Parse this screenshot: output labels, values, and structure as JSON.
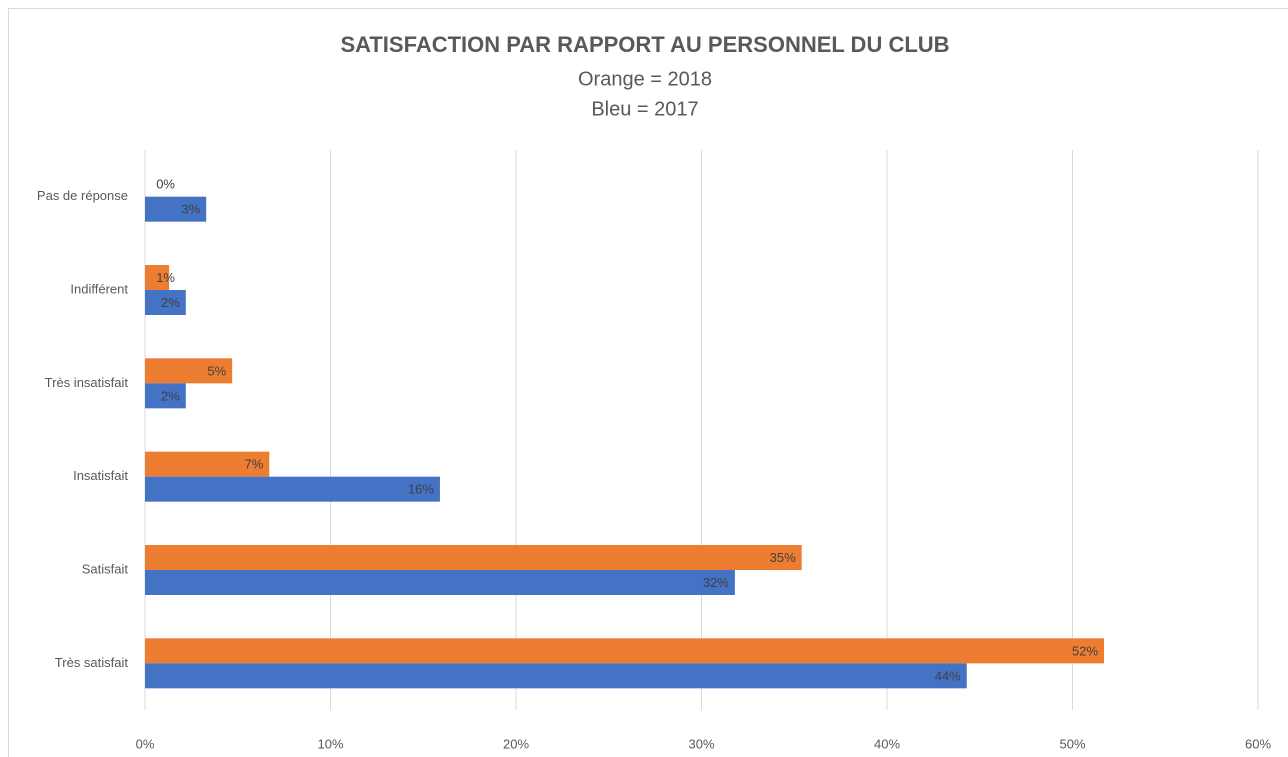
{
  "chart_data": {
    "type": "hbar",
    "title": "SATISFACTION PAR RAPPORT AU PERSONNEL DU CLUB",
    "subtitle": [
      "Orange = 2018",
      "Bleu = 2017"
    ],
    "categories": [
      "Pas de réponse",
      "Indifférent",
      "Très insatisfait",
      "Insatisfait",
      "Satisfait",
      "Très satisfait"
    ],
    "series": [
      {
        "color": "#ed7d31",
        "values": [
          0,
          1.3,
          4.7,
          6.7,
          35.4,
          51.7
        ],
        "value_labels": [
          "0%",
          "1%",
          "5%",
          "7%",
          "35%",
          "52%"
        ]
      },
      {
        "color": "#4472c4",
        "values": [
          3.3,
          2.2,
          2.2,
          15.9,
          31.8,
          44.3
        ],
        "value_labels": [
          "3%",
          "2%",
          "2%",
          "16%",
          "32%",
          "44%"
        ]
      }
    ],
    "xlim": [
      0,
      60
    ],
    "xticks": [
      {
        "value": 0,
        "label": "0%"
      },
      {
        "value": 10,
        "label": "10%"
      },
      {
        "value": 20,
        "label": "20%"
      },
      {
        "value": 30,
        "label": "30%"
      },
      {
        "value": 40,
        "label": "40%"
      },
      {
        "value": 50,
        "label": "50%"
      },
      {
        "value": 60,
        "label": "60%"
      }
    ],
    "grid": true
  }
}
